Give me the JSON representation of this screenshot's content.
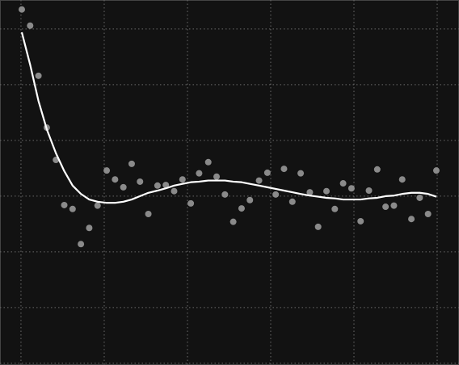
{
  "chart_data": {
    "type": "scatter",
    "x": [
      0.1,
      1.1,
      2.1,
      3.1,
      4.2,
      5.2,
      6.2,
      7.2,
      8.2,
      9.2,
      10.3,
      11.3,
      12.3,
      13.3,
      14.3,
      15.3,
      16.4,
      17.4,
      18.4,
      19.4,
      20.4,
      21.4,
      22.5,
      23.5,
      24.5,
      25.5,
      26.5,
      27.5,
      28.6,
      29.6,
      30.6,
      31.6,
      32.6,
      33.6,
      34.7,
      35.7,
      36.7,
      37.7,
      38.7,
      39.7,
      40.8,
      41.8,
      42.8,
      43.8,
      44.8,
      45.8,
      46.9,
      47.9,
      48.9,
      49.9
    ],
    "series": [
      {
        "color": "#8a8a8a",
        "values": [
          3.35,
          3.06,
          2.16,
          1.23,
          0.65,
          -0.16,
          -0.23,
          -0.86,
          -0.57,
          -0.17,
          0.46,
          0.3,
          0.16,
          0.58,
          0.26,
          -0.32,
          0.19,
          0.2,
          0.09,
          0.3,
          -0.13,
          0.41,
          0.61,
          0.35,
          0.03,
          -0.46,
          -0.22,
          -0.07,
          0.28,
          0.42,
          0.03,
          0.49,
          -0.1,
          0.41,
          0.07,
          -0.55,
          0.09,
          -0.23,
          0.23,
          0.14,
          -0.45,
          0.1,
          0.48,
          -0.19,
          -0.17,
          0.3,
          -0.41,
          -0.03,
          -0.32,
          0.46
        ]
      },
      {
        "type": "line",
        "color": "#ffffff",
        "values": [
          2.94,
          2.36,
          1.71,
          1.2,
          0.77,
          0.45,
          0.19,
          0.04,
          -0.06,
          -0.1,
          -0.12,
          -0.12,
          -0.1,
          -0.06,
          0.0,
          0.06,
          0.1,
          0.14,
          0.19,
          0.22,
          0.25,
          0.26,
          0.28,
          0.28,
          0.28,
          0.26,
          0.25,
          0.22,
          0.19,
          0.16,
          0.13,
          0.1,
          0.07,
          0.04,
          0.01,
          -0.01,
          -0.03,
          -0.04,
          -0.06,
          -0.06,
          -0.06,
          -0.04,
          -0.03,
          0.0,
          0.01,
          0.04,
          0.06,
          0.06,
          0.04,
          -0.01
        ]
      }
    ],
    "xlim": [
      -2.52,
      52.62
    ],
    "ylim": [
      -3.03,
      3.52
    ],
    "xticks": [
      0,
      10,
      20,
      30,
      40,
      50
    ],
    "yticks": [
      -3,
      -2,
      -1,
      0,
      1,
      2,
      3
    ],
    "grid": true,
    "background": "#121212"
  }
}
